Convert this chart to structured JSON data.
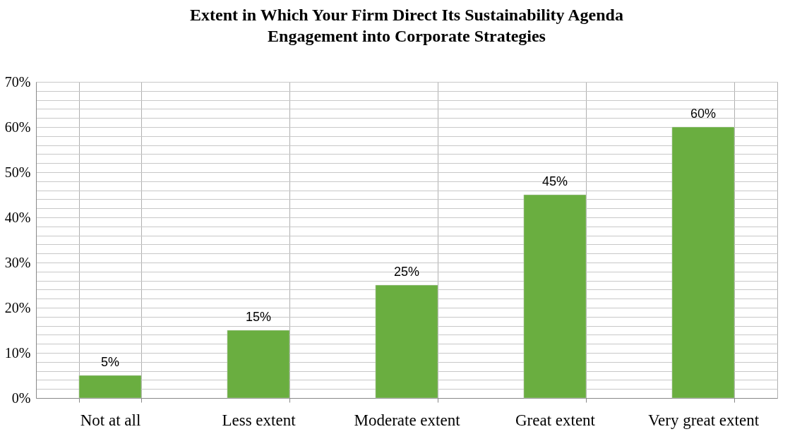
{
  "chart_data": {
    "type": "bar",
    "title": "Extent in Which Your Firm Direct Its Sustainability Agenda\nEngagement into Corporate Strategies",
    "categories": [
      "Not at all",
      "Less extent",
      "Moderate extent",
      "Great extent",
      "Very great extent"
    ],
    "values": [
      5,
      15,
      25,
      45,
      60
    ],
    "value_labels": [
      "5%",
      "15%",
      "25%",
      "45%",
      "60%"
    ],
    "color": "#6aae40",
    "ylim": [
      0,
      70
    ],
    "yticks": [
      {
        "value": 0,
        "label": "0%"
      },
      {
        "value": 2,
        "label": null
      },
      {
        "value": 4,
        "label": null
      },
      {
        "value": 6,
        "label": null
      },
      {
        "value": 8,
        "label": null
      },
      {
        "value": 10,
        "label": "10%"
      },
      {
        "value": 12,
        "label": null
      },
      {
        "value": 14,
        "label": null
      },
      {
        "value": 16,
        "label": null
      },
      {
        "value": 18,
        "label": null
      },
      {
        "value": 20,
        "label": "20%"
      },
      {
        "value": 22,
        "label": null
      },
      {
        "value": 24,
        "label": null
      },
      {
        "value": 26,
        "label": null
      },
      {
        "value": 28,
        "label": null
      },
      {
        "value": 30,
        "label": "30%"
      },
      {
        "value": 32,
        "label": null
      },
      {
        "value": 34,
        "label": null
      },
      {
        "value": 36,
        "label": null
      },
      {
        "value": 38,
        "label": null
      },
      {
        "value": 40,
        "label": "40%"
      },
      {
        "value": 42,
        "label": null
      },
      {
        "value": 44,
        "label": null
      },
      {
        "value": 46,
        "label": null
      },
      {
        "value": 48,
        "label": null
      },
      {
        "value": 50,
        "label": "50%"
      },
      {
        "value": 52,
        "label": null
      },
      {
        "value": 54,
        "label": null
      },
      {
        "value": 56,
        "label": null
      },
      {
        "value": 58,
        "label": null
      },
      {
        "value": 60,
        "label": "60%"
      },
      {
        "value": 62,
        "label": null
      },
      {
        "value": 64,
        "label": null
      },
      {
        "value": 66,
        "label": null
      },
      {
        "value": 68,
        "label": null
      },
      {
        "value": 70,
        "label": "70%"
      }
    ],
    "grid": true
  }
}
